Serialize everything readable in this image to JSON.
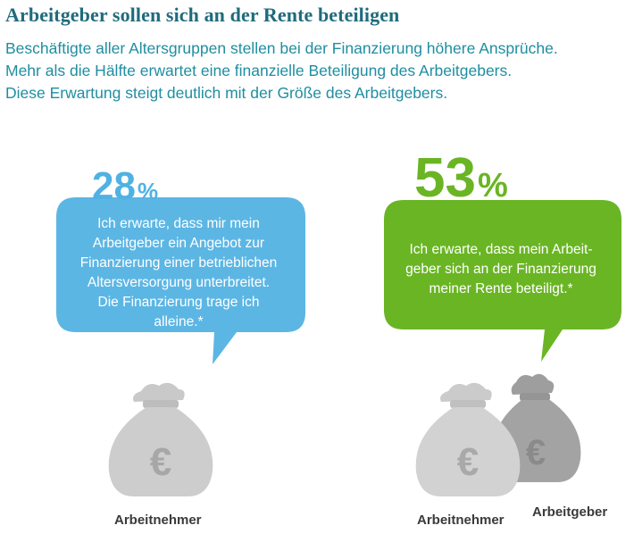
{
  "header": {
    "title": "Arbeitgeber sollen sich an der Rente beteiligen",
    "subtitle_lines": [
      "Beschäftigte aller Altersgruppen stellen bei der Finanzierung höhere Ansprüche.",
      "Mehr als die Hälfte erwartet eine finanzielle Beteiligung des Arbeitgebers.",
      "Diese Erwartung steigt deutlich mit der Größe des Arbeitgebers."
    ]
  },
  "left": {
    "percent": "28",
    "percent_sign": "%",
    "color": "#5cb6e4",
    "bubble_lines": [
      "Ich erwarte, dass mir mein",
      "Arbeitgeber ein Angebot zur",
      "Finanzierung einer betrieblichen",
      "Altersversorgung unterbreitet.",
      "Die Finanzierung trage ich",
      "alleine.*"
    ],
    "bag_symbol": "€",
    "bag_label": "Arbeitnehmer"
  },
  "right": {
    "percent": "53",
    "percent_sign": "%",
    "color": "#6ab524",
    "bubble_lines": [
      "Ich erwarte, dass mein Arbeit-",
      "geber sich an der Finanzierung",
      "meiner Rente beteiligt.*"
    ],
    "bag_symbol_front": "€",
    "bag_symbol_back": "€",
    "bag_label_front": "Arbeitnehmer",
    "bag_label_back": "Arbeitgeber"
  },
  "icons": [
    "money-bag-icon",
    "euro-icon"
  ]
}
